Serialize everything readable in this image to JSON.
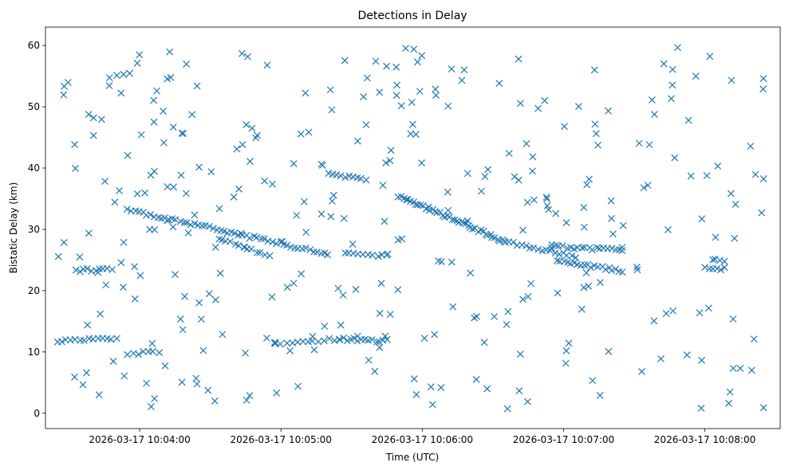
{
  "chart_data": {
    "type": "scatter",
    "title": "Detections in Delay",
    "xlabel": "Time (UTC)",
    "ylabel": "Bistatic Delay (km)",
    "x_axis_type": "time",
    "x_start": "2026-03-17 10:03:25",
    "x_end": "2026-03-17 10:08:25",
    "xlim": [
      "2026-03-17 10:03:20",
      "2026-03-17 10:08:32"
    ],
    "ylim": [
      -2.5,
      63
    ],
    "x_ticks": [
      "2026-03-17 10:04:00",
      "2026-03-17 10:05:00",
      "2026-03-17 10:06:00",
      "2026-03-17 10:07:00",
      "2026-03-17 10:08:00"
    ],
    "y_ticks": [
      "0",
      "10",
      "20",
      "30",
      "40",
      "50",
      "60"
    ],
    "grid": false,
    "legend": "none",
    "marker": "x",
    "color": "#1f77b4",
    "tracks": [
      {
        "start": "2026-03-17 10:03:25",
        "end": "2026-03-17 10:03:50",
        "y_start": 11.8,
        "y_end": 12.3,
        "count": 14
      },
      {
        "start": "2026-03-17 10:03:33",
        "end": "2026-03-17 10:03:48",
        "y_start": 23.3,
        "y_end": 23.5,
        "count": 10
      },
      {
        "start": "2026-03-17 10:03:55",
        "end": "2026-03-17 10:04:08",
        "y_start": 9.7,
        "y_end": 10.0,
        "count": 7
      },
      {
        "start": "2026-03-17 10:03:55",
        "end": "2026-03-17 10:05:20",
        "y_start": 33.2,
        "y_end": 26.0,
        "count": 55
      },
      {
        "start": "2026-03-17 10:04:35",
        "end": "2026-03-17 10:04:55",
        "y_start": 28.5,
        "y_end": 25.6,
        "count": 12
      },
      {
        "start": "2026-03-17 10:05:00",
        "end": "2026-03-17 10:05:25",
        "y_start": 11.5,
        "y_end": 12.1,
        "count": 12
      },
      {
        "start": "2026-03-17 10:05:20",
        "end": "2026-03-17 10:05:36",
        "y_start": 39.3,
        "y_end": 38.0,
        "count": 10
      },
      {
        "start": "2026-03-17 10:05:25",
        "end": "2026-03-17 10:05:45",
        "y_start": 12.1,
        "y_end": 11.8,
        "count": 14
      },
      {
        "start": "2026-03-17 10:05:27",
        "end": "2026-03-17 10:05:45",
        "y_start": 26.0,
        "y_end": 25.6,
        "count": 10
      },
      {
        "start": "2026-03-17 10:05:50",
        "end": "2026-03-17 10:06:35",
        "y_start": 35.4,
        "y_end": 28.0,
        "count": 45
      },
      {
        "start": "2026-03-17 10:06:35",
        "end": "2026-03-17 10:07:05",
        "y_start": 28.0,
        "y_end": 25.5,
        "count": 18
      },
      {
        "start": "2026-03-17 10:06:55",
        "end": "2026-03-17 10:07:25",
        "y_start": 27.2,
        "y_end": 26.6,
        "count": 20
      },
      {
        "start": "2026-03-17 10:06:57",
        "end": "2026-03-17 10:07:25",
        "y_start": 24.9,
        "y_end": 23.2,
        "count": 20
      },
      {
        "start": "2026-03-17 10:08:00",
        "end": "2026-03-17 10:08:08",
        "y_start": 23.6,
        "y_end": 23.6,
        "count": 6
      },
      {
        "start": "2026-03-17 10:08:03",
        "end": "2026-03-17 10:08:08",
        "y_start": 25.0,
        "y_end": 25.0,
        "count": 4
      }
    ],
    "clutter_seed": 17,
    "clutter_count": 330,
    "clutter_y_range": [
      0.5,
      60
    ]
  }
}
